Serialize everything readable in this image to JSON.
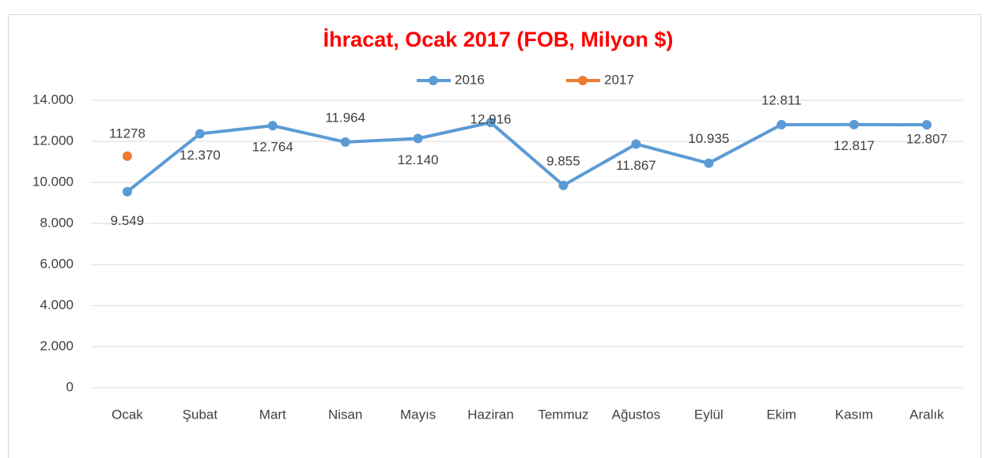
{
  "chart_data": {
    "type": "line",
    "title": "İhracat, Ocak 2017 (FOB, Milyon $)",
    "categories": [
      "Ocak",
      "Şubat",
      "Mart",
      "Nisan",
      "Mayıs",
      "Haziran",
      "Temmuz",
      "Ağustos",
      "Eylül",
      "Ekim",
      "Kasım",
      "Aralık"
    ],
    "series": [
      {
        "name": "2016",
        "color": "#5b9bd5",
        "values": [
          9549,
          12370,
          12764,
          11964,
          12140,
          12916,
          9855,
          11867,
          10935,
          12811,
          12817,
          12807
        ],
        "value_labels": [
          "9.549",
          "12.370",
          "12.764",
          "11.964",
          "12.140",
          "12.916",
          "9.855",
          "11.867",
          "10.935",
          "12.811",
          "12.817",
          "12.807"
        ]
      },
      {
        "name": "2017",
        "color": "#ed7d31",
        "values": [
          11278,
          null,
          null,
          null,
          null,
          null,
          null,
          null,
          null,
          null,
          null,
          null
        ]
      }
    ],
    "ylim": [
      0,
      14000
    ],
    "yticks": [
      0,
      {
        "value": 2000,
        "label": "2.000"
      },
      {
        "value": 4000,
        "label": "4.000"
      },
      {
        "value": 6000,
        "label": "6.000"
      },
      {
        "value": 8000,
        "label": "8.000"
      },
      {
        "value": 10000,
        "label": "10.000"
      },
      {
        "value": 12000,
        "label": "12.000"
      },
      {
        "value": 14000,
        "label": "14.000"
      }
    ],
    "grid": true,
    "legend": "top"
  }
}
